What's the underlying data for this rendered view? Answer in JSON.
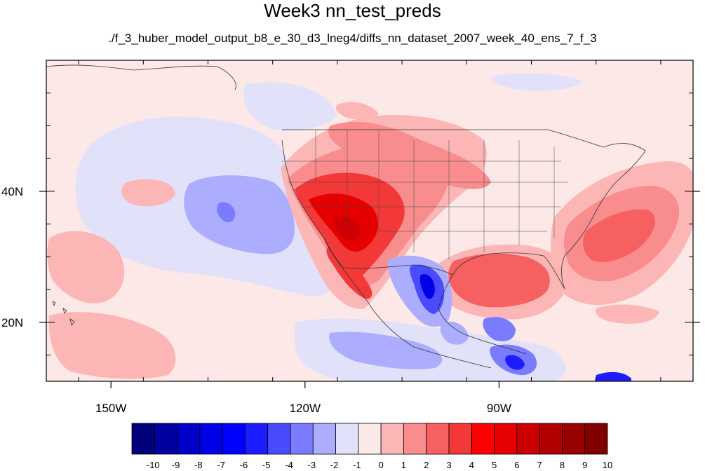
{
  "title": "Week3 nn_test_preds",
  "subtitle": "./f_3_huber_model_output_b8_e_30_d3_lneg4/diffs_nn_dataset_2007_week_40_ens_7_f_3",
  "map": {
    "lon_range": [
      -160,
      -60
    ],
    "lat_range": [
      11,
      60
    ],
    "lat_ticks": [
      {
        "value": 40,
        "label": "40N"
      },
      {
        "value": 20,
        "label": "20N"
      }
    ],
    "lon_ticks": [
      {
        "value": -150,
        "label": "150W"
      },
      {
        "value": -120,
        "label": "120W"
      },
      {
        "value": -90,
        "label": "90W"
      }
    ],
    "background_color": "#fde8e8",
    "regions": [
      {
        "name": "pacific-blue-anomaly",
        "level": -2
      },
      {
        "name": "pacific-light-blue",
        "level": -1
      },
      {
        "name": "southwest-red-core",
        "level": 6
      },
      {
        "name": "southwest-red",
        "level": 3
      },
      {
        "name": "gulf-red",
        "level": 4
      },
      {
        "name": "atlantic-red",
        "level": 4
      },
      {
        "name": "mexico-blue",
        "level": -4
      },
      {
        "name": "central-america-blue",
        "level": -3
      },
      {
        "name": "hawaii-red",
        "level": 2
      }
    ]
  },
  "colorbar": {
    "labels": [
      "-10",
      "-9",
      "-8",
      "-7",
      "-6",
      "-5",
      "-4",
      "-3",
      "-2",
      "-1",
      "0",
      "1",
      "2",
      "3",
      "4",
      "5",
      "6",
      "7",
      "8",
      "9",
      "10"
    ],
    "colors": [
      "#00007a",
      "#00009f",
      "#0000c8",
      "#0000e6",
      "#0000ff",
      "#1c1cff",
      "#4a4aff",
      "#7b7bff",
      "#adadff",
      "#e1e1fa",
      "#fde8e8",
      "#fcb6b6",
      "#f98c8c",
      "#f66060",
      "#f33838",
      "#ff0000",
      "#e60000",
      "#cc0000",
      "#b20000",
      "#990000",
      "#800000"
    ]
  }
}
